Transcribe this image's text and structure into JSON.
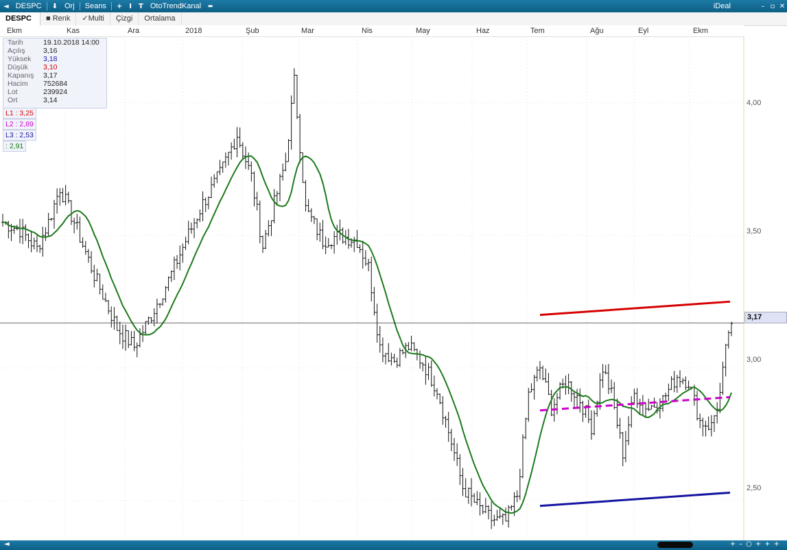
{
  "window": {
    "symbol": "DESPC",
    "menu": [
      "Orj",
      "Seans",
      "OtoTrendKanal"
    ],
    "app_name": "iDeal"
  },
  "toolbar": {
    "symbol": "DESPC",
    "options": [
      "Renk",
      "Multi",
      "Çizgi",
      "Ortalama"
    ]
  },
  "infobox": {
    "rows": [
      {
        "label": "Tarih",
        "value": "19.10.2018 14:00"
      },
      {
        "label": "Açılış",
        "value": "3,16"
      },
      {
        "label": "Yüksek",
        "value": "3,18"
      },
      {
        "label": "Düşük",
        "value": "3,10"
      },
      {
        "label": "Kapanış",
        "value": "3,17"
      },
      {
        "label": "Hacim",
        "value": "752684"
      },
      {
        "label": "Lot",
        "value": "239924"
      },
      {
        "label": "Ort",
        "value": "3,14"
      }
    ],
    "colors": {
      "Yüksek": "#1a1aa8",
      "Düşük": "#cc0000"
    }
  },
  "levels": [
    {
      "text": "L1 : 3,25",
      "color": "#d60000"
    },
    {
      "text": "L2 : 2,89",
      "color": "#cc00cc"
    },
    {
      "text": "L3 : 2,53",
      "color": "#1414a0"
    },
    {
      "text": ": 2,91",
      "color": "#0a7a0a"
    }
  ],
  "current_price": "3,17",
  "chart_data": {
    "type": "candlestick-line",
    "x_ticks": [
      "Ekm",
      "Kas",
      "Ara",
      "2018",
      "Şub",
      "Mar",
      "Nis",
      "May",
      "Haz",
      "Tem",
      "Ağu",
      "Eyl",
      "Ekm"
    ],
    "y_ticks": [
      "4,00",
      "3,50",
      "3,00",
      "2,50"
    ],
    "ylim": [
      2.35,
      4.25
    ],
    "price_waypoints": [
      [
        0,
        3.55
      ],
      [
        6,
        3.52
      ],
      [
        12,
        3.45
      ],
      [
        16,
        3.55
      ],
      [
        20,
        3.68
      ],
      [
        25,
        3.55
      ],
      [
        32,
        3.35
      ],
      [
        40,
        3.15
      ],
      [
        46,
        3.08
      ],
      [
        52,
        3.2
      ],
      [
        58,
        3.33
      ],
      [
        64,
        3.48
      ],
      [
        70,
        3.62
      ],
      [
        76,
        3.73
      ],
      [
        82,
        3.88
      ],
      [
        87,
        3.72
      ],
      [
        91,
        3.46
      ],
      [
        95,
        3.62
      ],
      [
        99,
        3.78
      ],
      [
        102,
        4.08
      ],
      [
        106,
        3.6
      ],
      [
        112,
        3.48
      ],
      [
        118,
        3.5
      ],
      [
        124,
        3.48
      ],
      [
        128,
        3.38
      ],
      [
        132,
        3.08
      ],
      [
        137,
        3.03
      ],
      [
        142,
        3.08
      ],
      [
        147,
        3.02
      ],
      [
        152,
        2.92
      ],
      [
        157,
        2.72
      ],
      [
        161,
        2.55
      ],
      [
        166,
        2.48
      ],
      [
        171,
        2.43
      ],
      [
        176,
        2.42
      ],
      [
        180,
        2.52
      ],
      [
        184,
        2.9
      ],
      [
        188,
        3.0
      ],
      [
        192,
        2.85
      ],
      [
        197,
        2.95
      ],
      [
        202,
        2.88
      ],
      [
        206,
        2.78
      ],
      [
        210,
        3.0
      ],
      [
        213,
        2.9
      ],
      [
        217,
        2.68
      ],
      [
        221,
        2.9
      ],
      [
        226,
        2.85
      ],
      [
        231,
        2.88
      ],
      [
        236,
        2.97
      ],
      [
        240,
        2.95
      ],
      [
        244,
        2.8
      ],
      [
        248,
        2.78
      ],
      [
        251,
        2.9
      ],
      [
        254,
        3.14
      ]
    ],
    "moving_average_color": "#1b7a1b",
    "trend_lines": [
      {
        "label": "L1",
        "color": "#d60000",
        "start": 3.2,
        "end": 3.25
      },
      {
        "label": "L2",
        "color": "#cc00cc",
        "start": 2.84,
        "end": 2.89
      },
      {
        "label": "L3",
        "color": "#1414a0",
        "start": 2.48,
        "end": 2.53
      }
    ],
    "current_price_line": 3.17
  }
}
